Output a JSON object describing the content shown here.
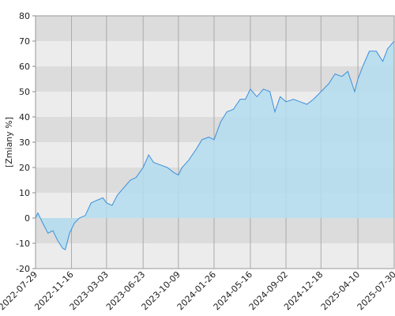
{
  "chart_data": {
    "type": "area",
    "ylabel": "[Zmiany %]",
    "x": [
      "2022-07-29",
      "2022-08-05",
      "2022-08-20",
      "2022-09-05",
      "2022-09-20",
      "2022-10-05",
      "2022-10-20",
      "2022-10-28",
      "2022-11-10",
      "2022-11-25",
      "2022-12-10",
      "2022-12-28",
      "2023-01-15",
      "2023-02-01",
      "2023-02-20",
      "2023-03-03",
      "2023-03-20",
      "2023-04-05",
      "2023-04-25",
      "2023-05-15",
      "2023-06-01",
      "2023-06-23",
      "2023-07-10",
      "2023-07-25",
      "2023-08-15",
      "2023-09-05",
      "2023-09-25",
      "2023-10-09",
      "2023-10-20",
      "2023-11-10",
      "2023-12-01",
      "2023-12-20",
      "2024-01-10",
      "2024-01-26",
      "2024-02-15",
      "2024-03-05",
      "2024-03-25",
      "2024-04-15",
      "2024-05-01",
      "2024-05-16",
      "2024-06-05",
      "2024-06-25",
      "2024-07-15",
      "2024-07-30",
      "2024-08-15",
      "2024-09-02",
      "2024-09-25",
      "2024-10-15",
      "2024-11-05",
      "2024-11-25",
      "2024-12-18",
      "2025-01-10",
      "2025-01-30",
      "2025-02-20",
      "2025-03-10",
      "2025-03-31",
      "2025-04-10",
      "2025-04-25",
      "2025-05-15",
      "2025-06-05",
      "2025-06-25",
      "2025-07-10",
      "2025-07-30"
    ],
    "series": [
      {
        "color": "#3d8fdc",
        "fill": "#b3ddef",
        "values": [
          0,
          2,
          -2,
          -6,
          -5,
          -9,
          -12,
          -12.5,
          -6,
          -2,
          0,
          1,
          6,
          7,
          8,
          6,
          5,
          9,
          12,
          15,
          16,
          20,
          25,
          22,
          21,
          20,
          18,
          17,
          20,
          23,
          27,
          31,
          32,
          31,
          38,
          42,
          43,
          47,
          47,
          51,
          48,
          51,
          50,
          42,
          48,
          46,
          47,
          46,
          45,
          47,
          50,
          53,
          57,
          56,
          58,
          50,
          55,
          60,
          66,
          66,
          62,
          67,
          70
        ]
      }
    ],
    "xlim": [
      "2022-07-29",
      "2025-07-30"
    ],
    "xticks": [
      "2022-07-29",
      "2022-11-16",
      "2023-03-03",
      "2023-06-23",
      "2023-10-09",
      "2024-01-26",
      "2024-05-16",
      "2024-09-02",
      "2024-12-18",
      "2025-04-10",
      "2025-07-30"
    ],
    "ylim": [
      -20,
      80
    ],
    "yticks": [
      -20,
      -10,
      0,
      10,
      20,
      30,
      40,
      50,
      60,
      70,
      80
    ],
    "grid": true
  }
}
